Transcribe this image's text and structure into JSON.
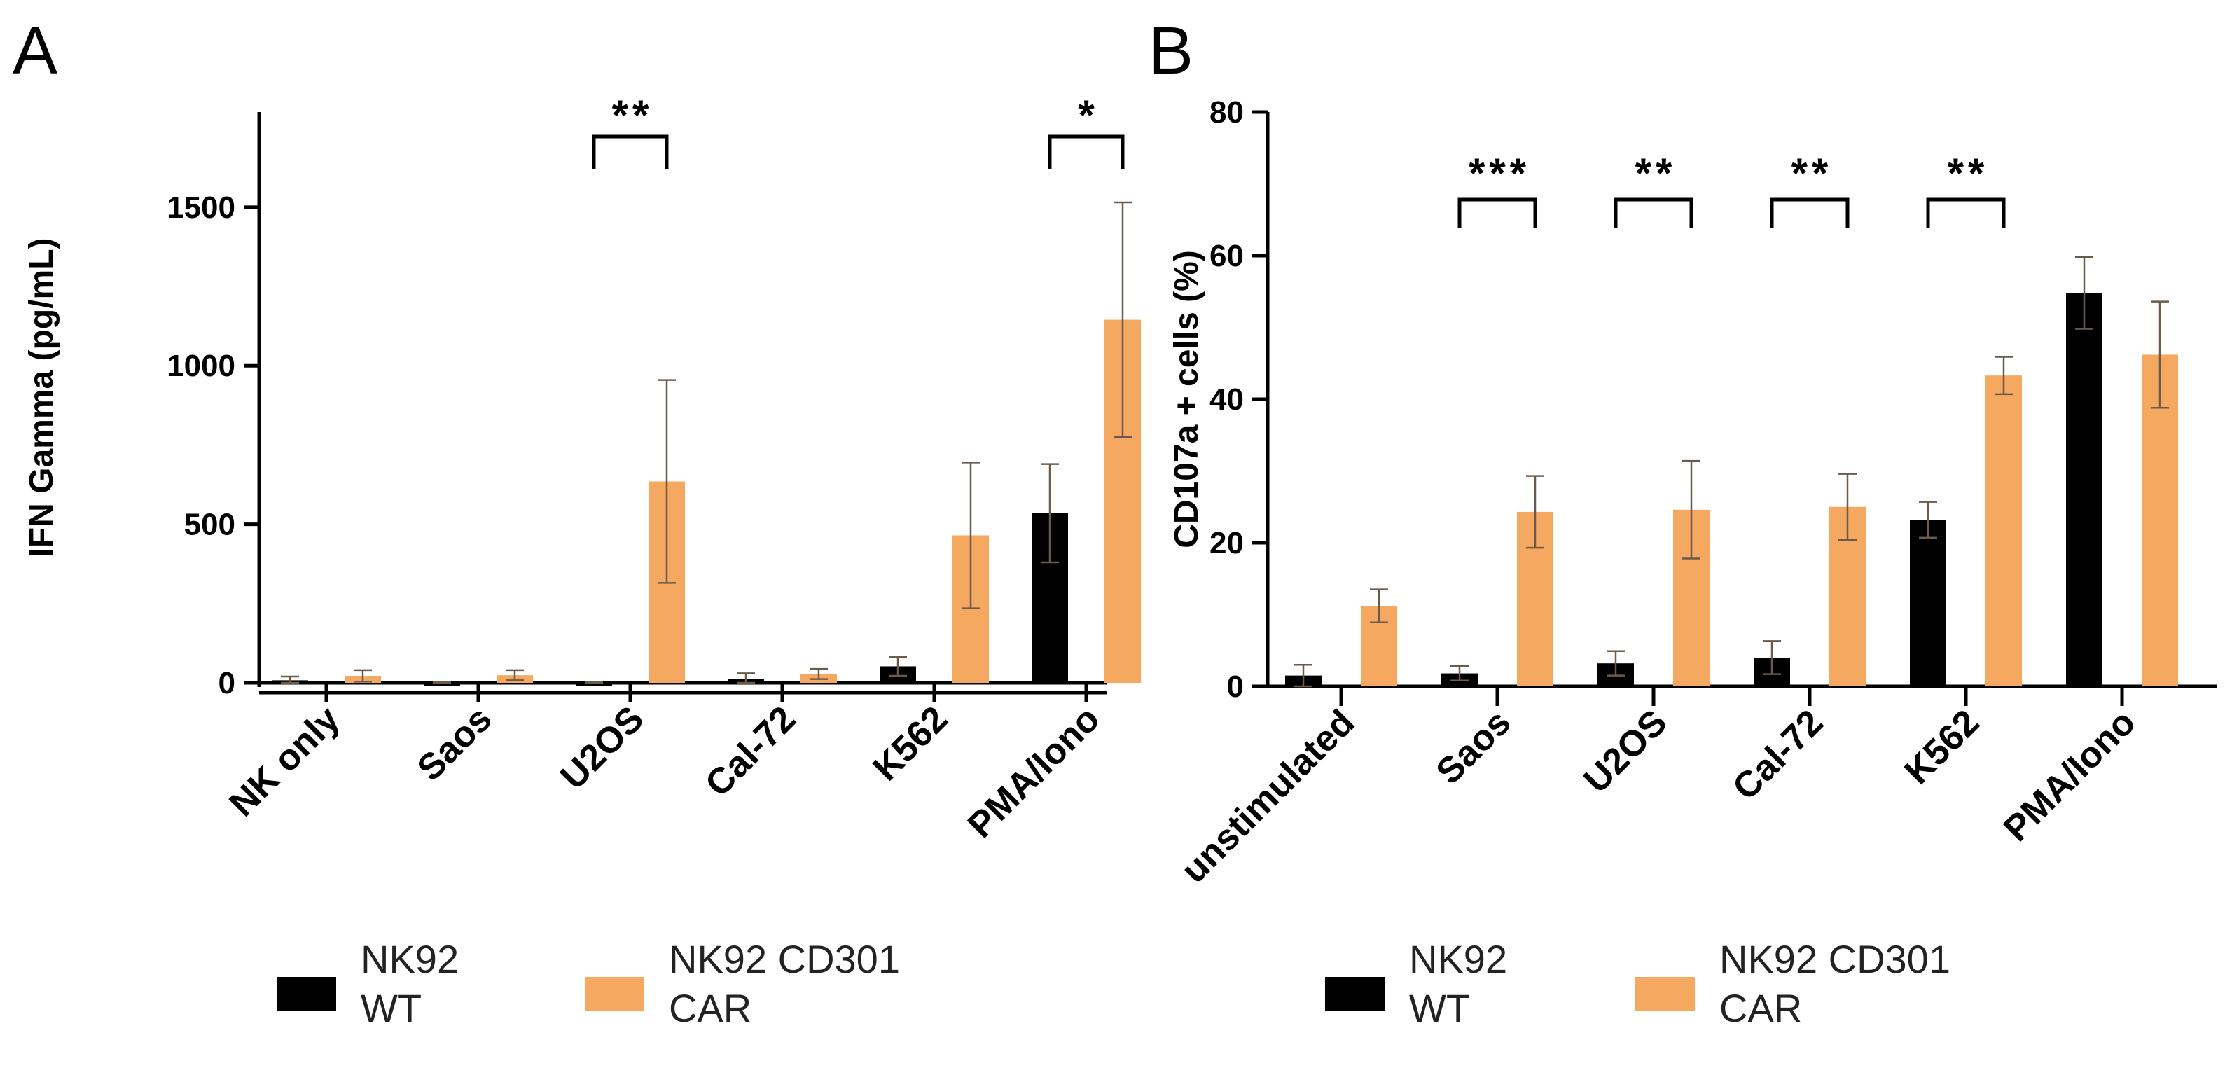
{
  "chart_data": [
    {
      "panel": "A",
      "type": "bar",
      "ylabel": "IFN Gamma (pg/mL)",
      "ylim": [
        0,
        1800
      ],
      "yticks": [
        0,
        500,
        1000,
        1500
      ],
      "categories": [
        "NK only",
        "Saos",
        "U2OS",
        "Cal-72",
        "K562",
        "PMA/Iono"
      ],
      "series": [
        {
          "name": "NK92 WT",
          "color": "#000000",
          "values": [
            8,
            -5,
            -6,
            12,
            52,
            535
          ],
          "errors": [
            12,
            8,
            8,
            18,
            30,
            155
          ]
        },
        {
          "name": "NK92 CD301 CAR",
          "color": "#F5A860",
          "values": [
            22,
            24,
            635,
            28,
            465,
            1145
          ],
          "errors": [
            18,
            16,
            320,
            16,
            230,
            370
          ]
        }
      ],
      "significance": [
        {
          "category": "U2OS",
          "label": "**"
        },
        {
          "category": "PMA/Iono",
          "label": "*"
        }
      ],
      "legend_position": "bottom"
    },
    {
      "panel": "B",
      "type": "bar",
      "ylabel": "CD107a + cells (%)",
      "ylim": [
        0,
        80
      ],
      "yticks": [
        0,
        20,
        40,
        60,
        80
      ],
      "categories": [
        "unstimulated",
        "Saos",
        "U2OS",
        "Cal-72",
        "K562",
        "PMA/Iono"
      ],
      "series": [
        {
          "name": "NK92 WT",
          "color": "#000000",
          "values": [
            1.5,
            1.8,
            3.2,
            4.0,
            23.2,
            54.8
          ],
          "errors": [
            1.5,
            1.0,
            1.7,
            2.3,
            2.5,
            5.0
          ]
        },
        {
          "name": "NK92 CD301 CAR",
          "color": "#F5A860",
          "values": [
            11.2,
            24.3,
            24.6,
            25.0,
            43.3,
            46.2
          ],
          "errors": [
            2.3,
            5.0,
            6.8,
            4.6,
            2.6,
            7.4
          ]
        }
      ],
      "significance": [
        {
          "category": "Saos",
          "label": "***"
        },
        {
          "category": "U2OS",
          "label": "**"
        },
        {
          "category": "Cal-72",
          "label": "**"
        },
        {
          "category": "K562",
          "label": "**"
        }
      ],
      "legend_position": "bottom"
    }
  ],
  "legend": [
    {
      "line1": "NK92",
      "line2": "WT"
    },
    {
      "line1": "NK92 CD301",
      "line2": "CAR"
    }
  ]
}
